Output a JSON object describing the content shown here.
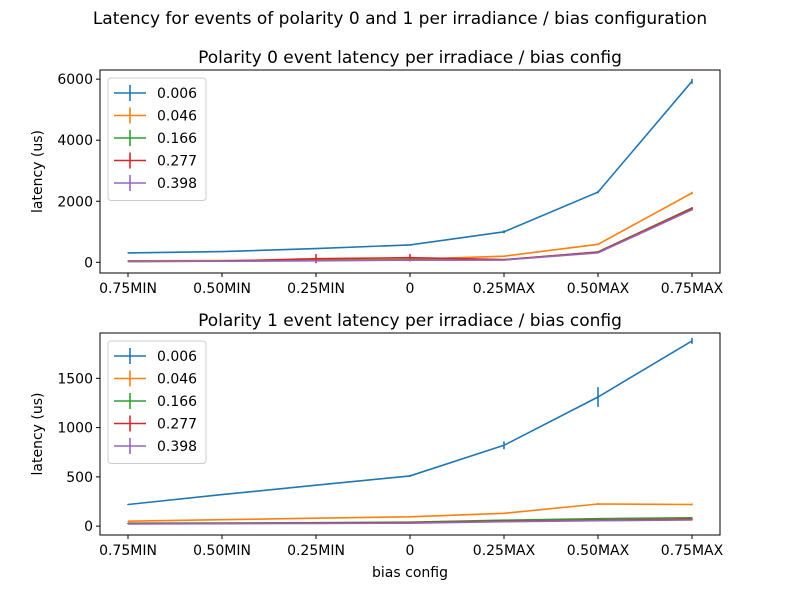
{
  "figure": {
    "suptitle": "Latency for events of polarity 0 and 1 per irradiance / bias configuration"
  },
  "chart_data": [
    {
      "type": "line",
      "title": "Polarity 0 event latency per irradiace / bias config",
      "xlabel": "",
      "ylabel": "latency (us)",
      "categories": [
        "0.75MIN",
        "0.50MIN",
        "0.25MIN",
        "0",
        "0.25MAX",
        "0.50MAX",
        "0.75MAX"
      ],
      "ylim": [
        -350,
        6300
      ],
      "yticks": [
        0,
        2000,
        4000,
        6000
      ],
      "legend_position": "top-left",
      "series": [
        {
          "name": "0.006",
          "color": "#1f77b4",
          "values": [
            310,
            350,
            450,
            570,
            1000,
            2300,
            5930
          ],
          "errors": [
            15,
            15,
            20,
            25,
            50,
            40,
            80
          ]
        },
        {
          "name": "0.046",
          "color": "#ff7f0e",
          "values": [
            50,
            55,
            80,
            100,
            200,
            590,
            2270
          ],
          "errors": [
            5,
            5,
            10,
            10,
            15,
            30,
            40
          ]
        },
        {
          "name": "0.166",
          "color": "#2ca02c",
          "values": [
            35,
            40,
            60,
            80,
            80,
            340,
            1780
          ],
          "errors": [
            5,
            5,
            10,
            10,
            10,
            20,
            30
          ]
        },
        {
          "name": "0.277",
          "color": "#d62728",
          "values": [
            30,
            40,
            120,
            150,
            90,
            330,
            1760
          ],
          "errors": [
            5,
            5,
            150,
            120,
            10,
            20,
            30
          ]
        },
        {
          "name": "0.398",
          "color": "#9467bd",
          "values": [
            25,
            35,
            50,
            70,
            75,
            310,
            1720
          ],
          "errors": [
            5,
            5,
            10,
            10,
            10,
            20,
            30
          ]
        }
      ]
    },
    {
      "type": "line",
      "title": "Polarity 1 event latency per irradiace / bias config",
      "xlabel": "bias config",
      "ylabel": "latency (us)",
      "categories": [
        "0.75MIN",
        "0.50MIN",
        "0.25MIN",
        "0",
        "0.25MAX",
        "0.50MAX",
        "0.75MAX"
      ],
      "ylim": [
        -90,
        1960
      ],
      "yticks": [
        0,
        500,
        1000,
        1500
      ],
      "legend_position": "top-left",
      "series": [
        {
          "name": "0.006",
          "color": "#1f77b4",
          "values": [
            220,
            320,
            415,
            510,
            820,
            1310,
            1880
          ],
          "errors": [
            5,
            5,
            5,
            10,
            40,
            100,
            30
          ]
        },
        {
          "name": "0.046",
          "color": "#ff7f0e",
          "values": [
            50,
            65,
            80,
            95,
            130,
            225,
            220
          ],
          "errors": [
            3,
            3,
            3,
            5,
            5,
            10,
            10
          ]
        },
        {
          "name": "0.166",
          "color": "#2ca02c",
          "values": [
            30,
            32,
            35,
            40,
            60,
            75,
            85
          ],
          "errors": [
            3,
            3,
            3,
            3,
            3,
            5,
            5
          ]
        },
        {
          "name": "0.277",
          "color": "#d62728",
          "values": [
            25,
            28,
            32,
            35,
            50,
            60,
            70
          ],
          "errors": [
            3,
            3,
            3,
            3,
            3,
            5,
            5
          ]
        },
        {
          "name": "0.398",
          "color": "#9467bd",
          "values": [
            22,
            25,
            28,
            30,
            45,
            55,
            62
          ],
          "errors": [
            3,
            3,
            3,
            3,
            3,
            5,
            5
          ]
        }
      ]
    }
  ]
}
